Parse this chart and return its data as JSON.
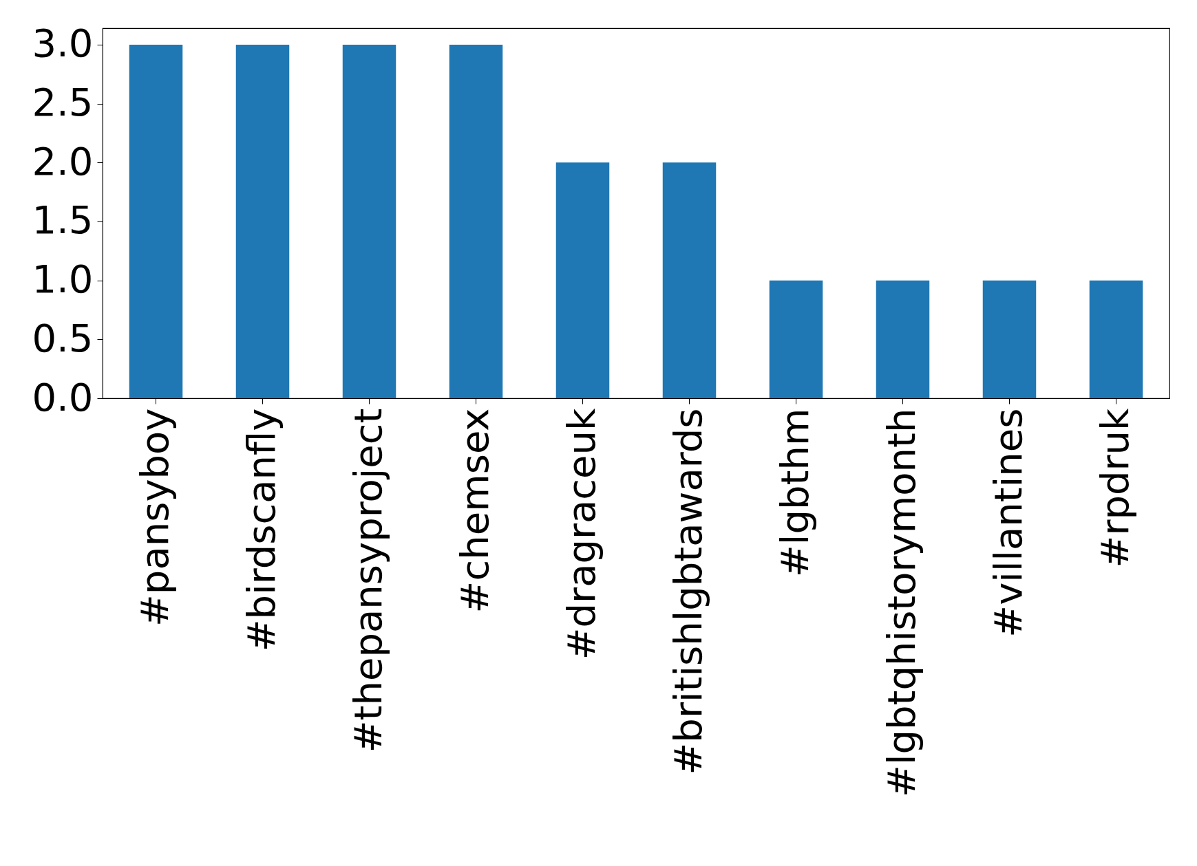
{
  "chart_data": {
    "type": "bar",
    "categories": [
      "#pansyboy",
      "#birdscanfly",
      "#thepansyproject",
      "#chemsex",
      "#dragraceuk",
      "#britishlgbtawards",
      "#lgbthm",
      "#lgbtqhistorymonth",
      "#villantines",
      "#rpdruk"
    ],
    "values": [
      3,
      3,
      3,
      3,
      2,
      2,
      1,
      1,
      1,
      1
    ],
    "color": "#1f77b4",
    "ylim": [
      0,
      3.14
    ],
    "yticks": [
      {
        "value": 0,
        "label": "0.0"
      },
      {
        "value": 0.5,
        "label": "0.5"
      },
      {
        "value": 1,
        "label": "1.0"
      },
      {
        "value": 1.5,
        "label": "1.5"
      },
      {
        "value": 2,
        "label": "2.0"
      },
      {
        "value": 2.5,
        "label": "2.5"
      },
      {
        "value": 3,
        "label": "3.0"
      }
    ],
    "grid": false
  }
}
